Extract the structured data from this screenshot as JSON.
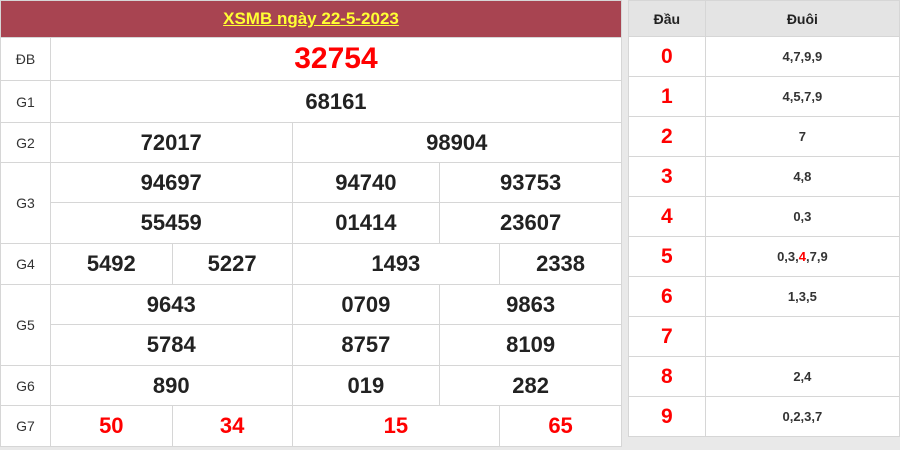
{
  "title": "XSMB ngày 22-5-2023",
  "prizes": {
    "db": {
      "label": "ĐB",
      "values": [
        "32754"
      ]
    },
    "g1": {
      "label": "G1",
      "values": [
        "68161"
      ]
    },
    "g2": {
      "label": "G2",
      "values": [
        "72017",
        "98904"
      ]
    },
    "g3": {
      "label": "G3",
      "values": [
        "94697",
        "94740",
        "93753",
        "55459",
        "01414",
        "23607"
      ]
    },
    "g4": {
      "label": "G4",
      "values": [
        "5492",
        "5227",
        "1493",
        "2338"
      ]
    },
    "g5": {
      "label": "G5",
      "values": [
        "9643",
        "0709",
        "9863",
        "5784",
        "8757",
        "8109"
      ]
    },
    "g6": {
      "label": "G6",
      "values": [
        "890",
        "019",
        "282"
      ]
    },
    "g7": {
      "label": "G7",
      "values": [
        "50",
        "34",
        "15",
        "65"
      ]
    }
  },
  "loto": {
    "head_label": "Đầu",
    "tail_label": "Đuôi",
    "rows": [
      {
        "head": "0",
        "tails": "4,7,9,9"
      },
      {
        "head": "1",
        "tails": "4,5,7,9"
      },
      {
        "head": "2",
        "tails": "7"
      },
      {
        "head": "3",
        "tails": "4,8"
      },
      {
        "head": "4",
        "tails": "0,3"
      },
      {
        "head": "5",
        "tails_parts": [
          "0,3,",
          "4",
          ",7,9"
        ],
        "highlight": "4"
      },
      {
        "head": "6",
        "tails": "1,3,5"
      },
      {
        "head": "7",
        "tails": ""
      },
      {
        "head": "8",
        "tails": "2,4"
      },
      {
        "head": "9",
        "tails": "0,2,3,7"
      }
    ]
  },
  "colors": {
    "header_bg": "#a84451",
    "title": "#ffff33",
    "accent": "#ff0000"
  }
}
